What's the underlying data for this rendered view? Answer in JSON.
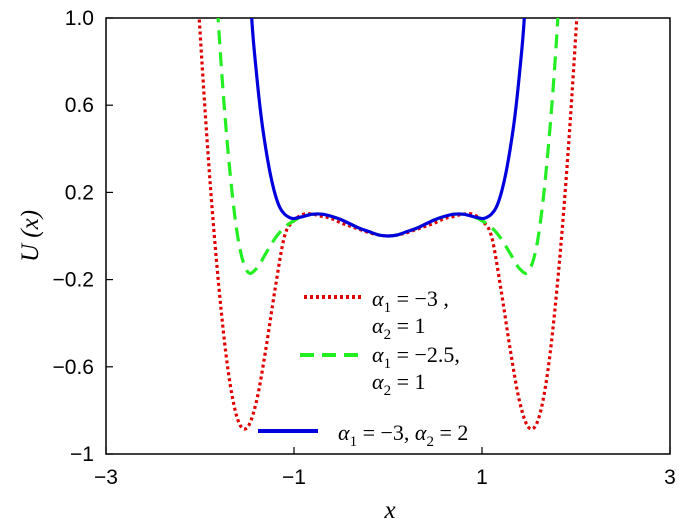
{
  "chart_data": {
    "type": "line",
    "xlabel": "x",
    "ylabel": "U (x)",
    "xlim": [
      -3,
      3
    ],
    "ylim": [
      -1,
      1
    ],
    "xticks": [
      "−3",
      "−1",
      "1",
      "3"
    ],
    "yticks": [
      "1.0",
      "0.6",
      "0.2",
      "−0.2",
      "−0.6",
      "−1"
    ],
    "legend_placement": "bottom-center",
    "series": [
      {
        "name": "α1 = −3 , α2 = 1",
        "color": "#e00000",
        "style": "dotted",
        "x": [
          -2.1,
          -2.0,
          -1.9,
          -1.8,
          -1.7,
          -1.6,
          -1.5,
          -1.4,
          -1.3,
          -1.2,
          -1.1,
          -1.0,
          -0.9,
          -0.8,
          -0.7,
          -0.6,
          -0.5,
          -0.4,
          -0.3,
          -0.2,
          -0.1,
          0.0,
          0.1,
          0.2,
          0.3,
          0.4,
          0.5,
          0.6,
          0.7,
          0.8,
          0.9,
          1.0,
          1.1,
          1.2,
          1.3,
          1.4,
          1.5,
          1.6,
          1.7,
          1.8,
          1.9,
          2.0,
          2.1
        ],
        "y": [
          1.68,
          0.94,
          0.29,
          -0.23,
          -0.62,
          -0.84,
          -0.88,
          -0.76,
          -0.52,
          -0.24,
          0.0,
          0.07,
          0.1,
          0.1,
          0.09,
          0.08,
          0.06,
          0.045,
          0.03,
          0.015,
          0.005,
          0.0,
          0.005,
          0.015,
          0.03,
          0.045,
          0.06,
          0.08,
          0.09,
          0.1,
          0.1,
          0.07,
          0.0,
          -0.24,
          -0.52,
          -0.76,
          -0.88,
          -0.84,
          -0.62,
          -0.23,
          0.29,
          0.94,
          1.68
        ]
      },
      {
        "name": "α1 = −2.5, α2 = 1",
        "color": "#22ee22",
        "style": "dashed",
        "x": [
          -1.9,
          -1.8,
          -1.7,
          -1.6,
          -1.5,
          -1.4,
          -1.3,
          -1.2,
          -1.1,
          -1.0,
          -0.9,
          -0.8,
          -0.7,
          -0.6,
          -0.5,
          -0.4,
          -0.3,
          -0.2,
          -0.1,
          0.0,
          0.1,
          0.2,
          0.3,
          0.4,
          0.5,
          0.6,
          0.7,
          0.8,
          0.9,
          1.0,
          1.1,
          1.2,
          1.3,
          1.4,
          1.5,
          1.6,
          1.7,
          1.8,
          1.9
        ],
        "y": [
          1.75,
          0.95,
          0.38,
          0.0,
          -0.16,
          -0.15,
          -0.08,
          -0.01,
          0.04,
          0.07,
          0.09,
          0.1,
          0.1,
          0.09,
          0.075,
          0.055,
          0.035,
          0.02,
          0.005,
          0.0,
          0.005,
          0.02,
          0.035,
          0.055,
          0.075,
          0.09,
          0.1,
          0.1,
          0.09,
          0.07,
          0.04,
          -0.01,
          -0.08,
          -0.15,
          -0.16,
          0.0,
          0.38,
          0.95,
          1.75
        ]
      },
      {
        "name": "α1 = −3, α2 = 2",
        "color": "#0000dd",
        "style": "solid",
        "x": [
          -1.5,
          -1.45,
          -1.4,
          -1.35,
          -1.3,
          -1.25,
          -1.2,
          -1.15,
          -1.1,
          -1.05,
          -1.0,
          -0.9,
          -0.8,
          -0.7,
          -0.6,
          -0.5,
          -0.4,
          -0.3,
          -0.2,
          -0.1,
          0.0,
          0.1,
          0.2,
          0.3,
          0.4,
          0.5,
          0.6,
          0.7,
          0.8,
          0.9,
          1.0,
          1.05,
          1.1,
          1.15,
          1.2,
          1.25,
          1.3,
          1.35,
          1.4,
          1.45,
          1.5
        ],
        "y": [
          1.45,
          1.0,
          0.75,
          0.55,
          0.4,
          0.28,
          0.19,
          0.13,
          0.1,
          0.085,
          0.08,
          0.09,
          0.1,
          0.1,
          0.09,
          0.075,
          0.055,
          0.035,
          0.02,
          0.005,
          0.0,
          0.005,
          0.02,
          0.035,
          0.055,
          0.075,
          0.09,
          0.1,
          0.1,
          0.09,
          0.08,
          0.085,
          0.1,
          0.13,
          0.19,
          0.28,
          0.4,
          0.55,
          0.75,
          1.0,
          1.45
        ]
      }
    ]
  }
}
